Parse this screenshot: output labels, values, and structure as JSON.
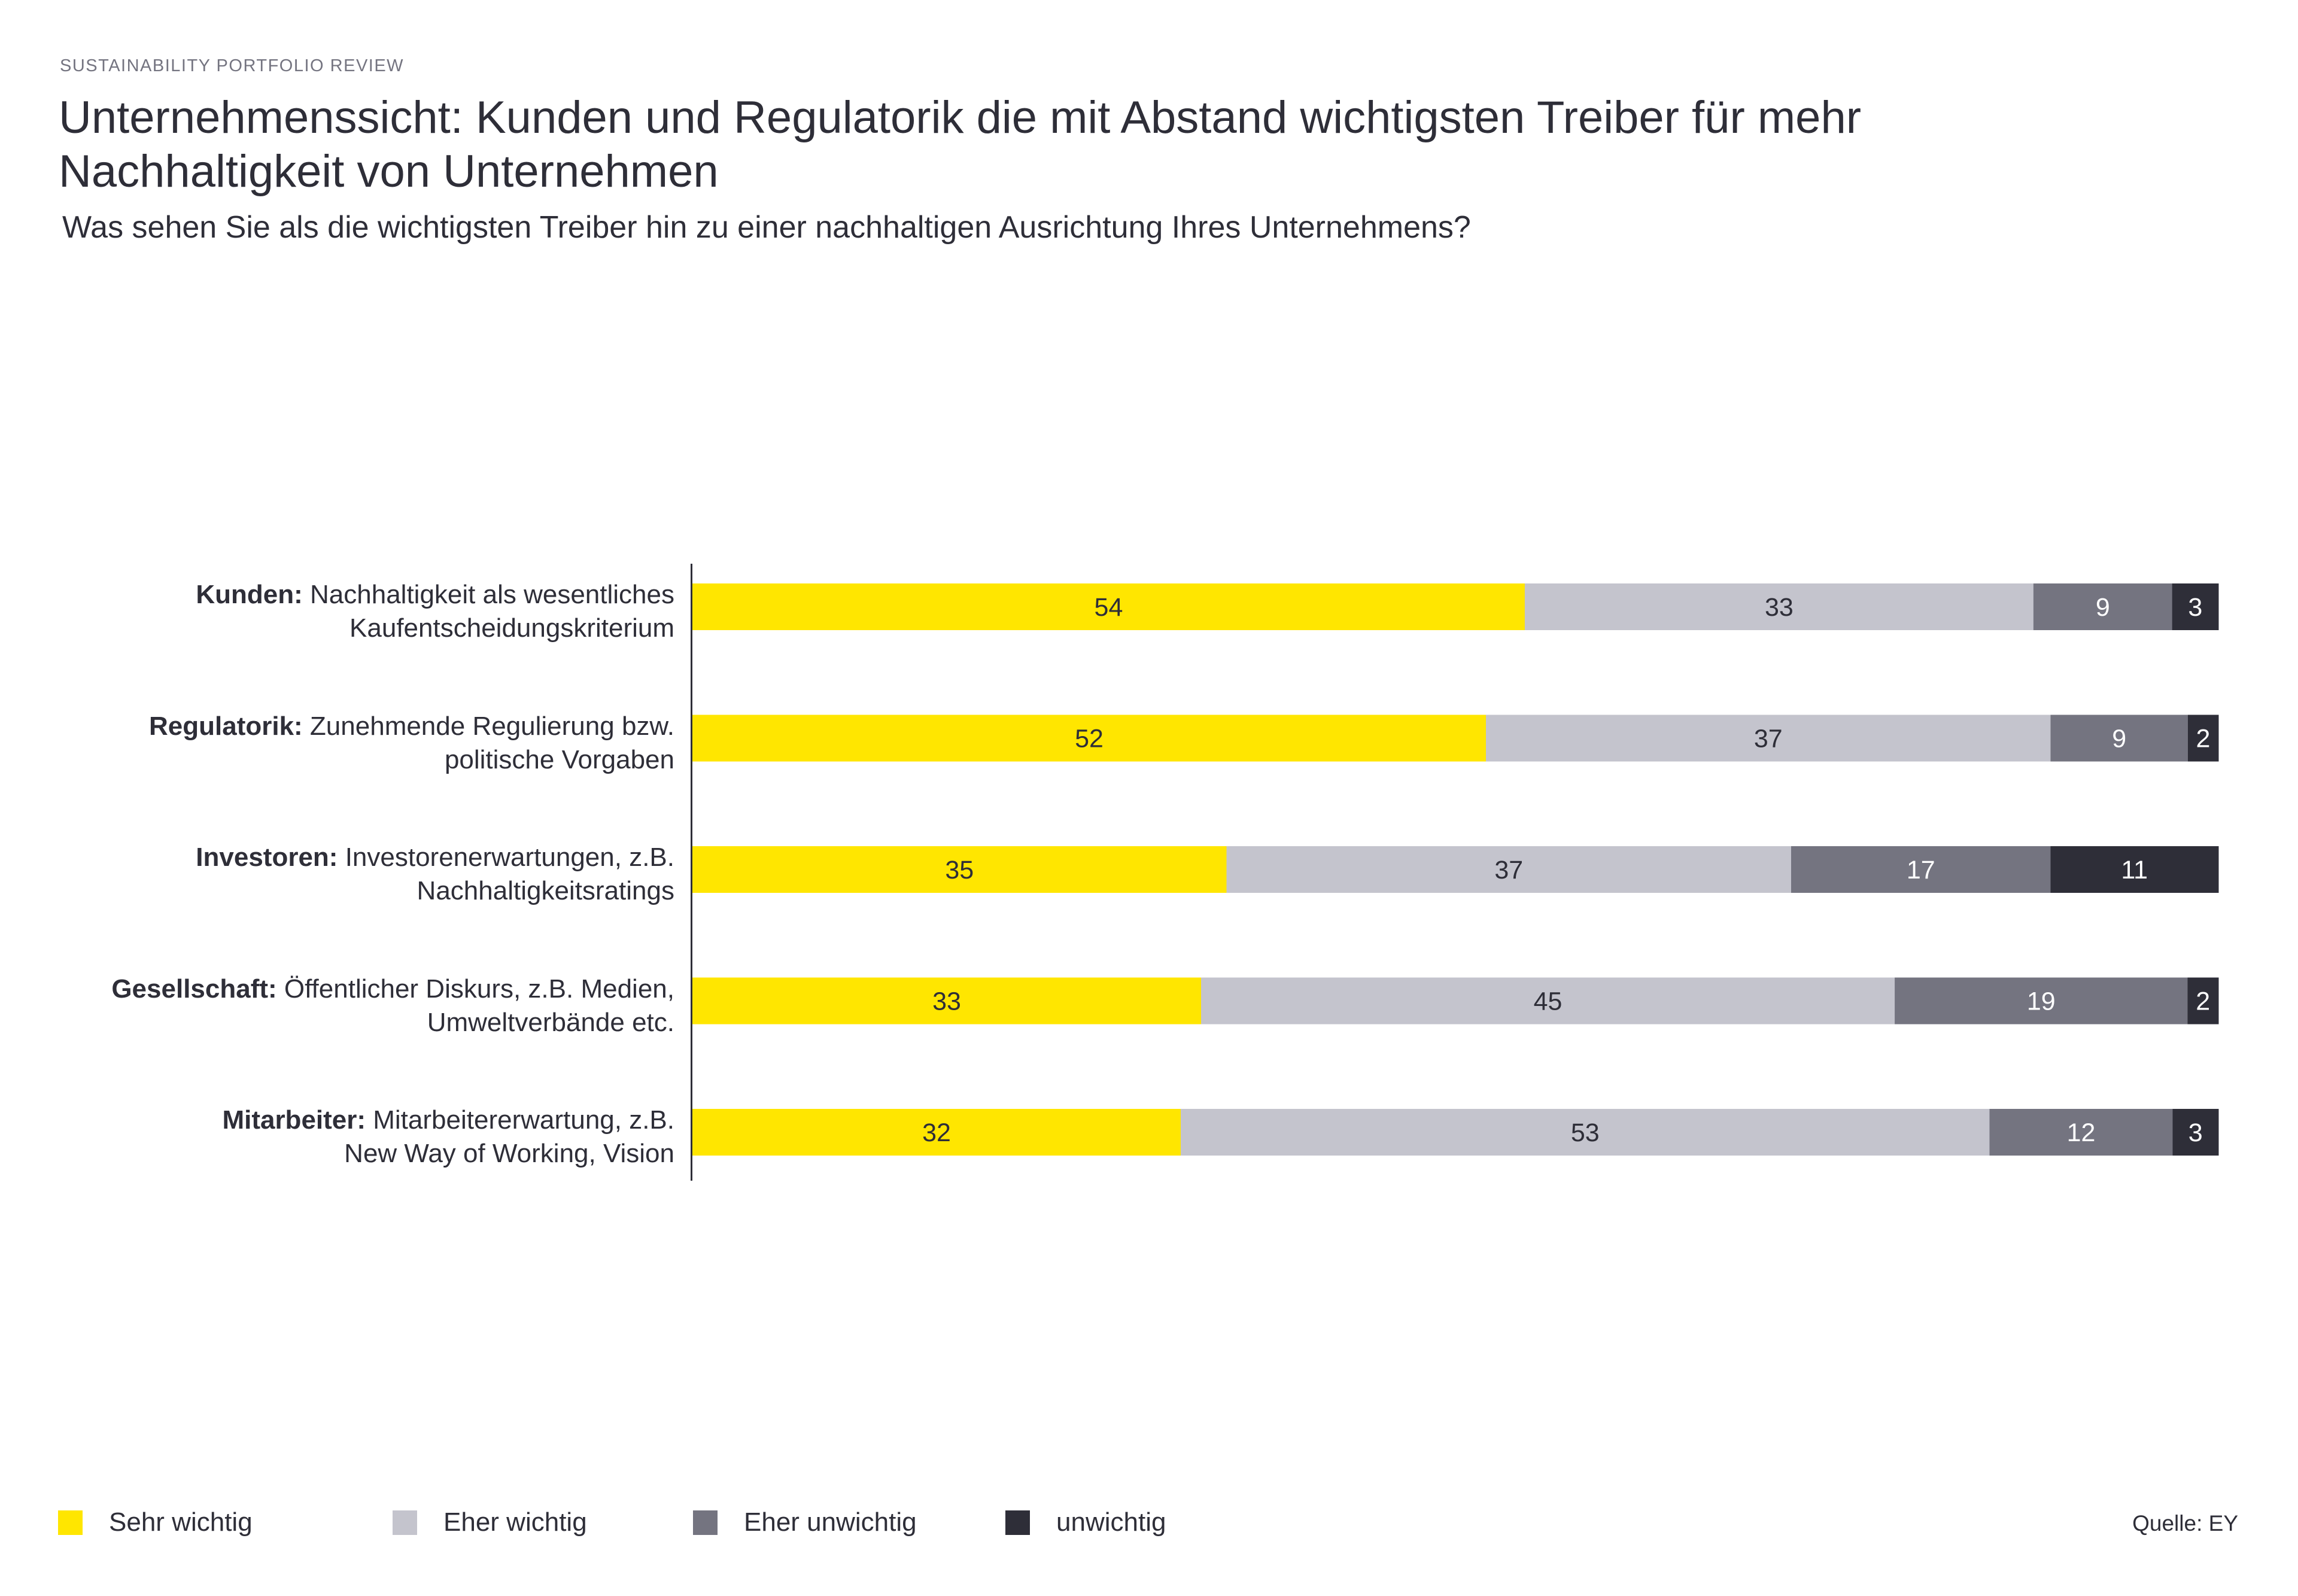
{
  "header": {
    "eyebrow": "SUSTAINABILITY PORTFOLIO REVIEW",
    "title": "Unternehmenssicht: Kunden und Regulatorik die mit Abstand wichtigsten Treiber für mehr Nachhaltigkeit von Unternehmen",
    "subtitle": "Was sehen Sie als die wichtigsten Treiber hin zu einer nachhaltigen Ausrichtung Ihres Unternehmens?"
  },
  "source": "Quelle: EY",
  "colors": {
    "sehr_wichtig": "#FFE600",
    "eher_wichtig": "#C4C4CD",
    "eher_unwichtig": "#747480",
    "unwichtig": "#2E2E38",
    "text_dark": "#2E2E38",
    "text_light": "#FFFFFF"
  },
  "chart_data": {
    "type": "bar",
    "orientation": "horizontal",
    "stacked": true,
    "normalized": true,
    "title": "Unternehmenssicht: Kunden und Regulatorik die mit Abstand wichtigsten Treiber für mehr Nachhaltigkeit von Unternehmen",
    "subtitle": "Was sehen Sie als die wichtigsten Treiber hin zu einer nachhaltigen Ausrichtung Ihres Unternehmens?",
    "xlabel": "",
    "ylabel": "",
    "unit": "%",
    "grid": false,
    "legend_position": "bottom-left",
    "categories": [
      {
        "bold": "Kunden:",
        "text": "Nachhaltigkeit als wesentliches",
        "line2": "Kaufentscheidungskriterium"
      },
      {
        "bold": "Regulatorik:",
        "text": "Zunehmende Regulierung bzw.",
        "line2": "politische Vorgaben"
      },
      {
        "bold": "Investoren:",
        "text": "Investorenerwartungen, z.B.",
        "line2": "Nachhaltigkeitsratings"
      },
      {
        "bold": "Gesellschaft:",
        "text": "Öffentlicher Diskurs, z.B. Medien,",
        "line2": "Umweltverbände etc."
      },
      {
        "bold": "Mitarbeiter:",
        "text": "Mitarbeitererwartung, z.B.",
        "line2": "New Way of Working, Vision"
      }
    ],
    "series": [
      {
        "name": "Sehr wichtig",
        "color": "#FFE600",
        "label_color": "#2E2E38",
        "values": [
          54,
          52,
          35,
          33,
          32
        ]
      },
      {
        "name": "Eher wichtig",
        "color": "#C4C4CD",
        "label_color": "#2E2E38",
        "values": [
          33,
          37,
          37,
          45,
          53
        ]
      },
      {
        "name": "Eher unwichtig",
        "color": "#747480",
        "label_color": "#FFFFFF",
        "values": [
          9,
          9,
          17,
          19,
          12
        ]
      },
      {
        "name": "unwichtig",
        "color": "#2E2E38",
        "label_color": "#FFFFFF",
        "values": [
          3,
          2,
          11,
          2,
          3
        ]
      }
    ]
  }
}
